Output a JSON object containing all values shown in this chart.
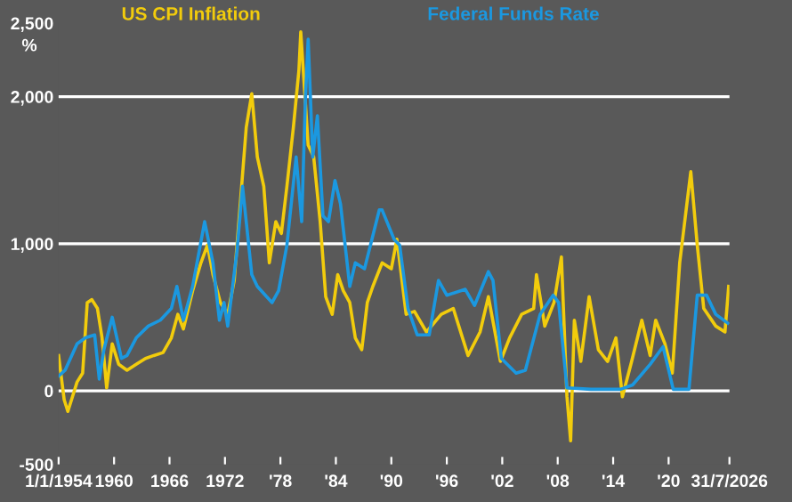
{
  "chart_data": {
    "type": "line",
    "ylabel": "%",
    "xlim": [
      1954.0,
      2026.58
    ],
    "ylim": [
      -500,
      2500
    ],
    "xticks": [
      {
        "value": 1954.0,
        "label": "1/1/1954"
      },
      1960,
      1966,
      1972,
      {
        "value": 1978,
        "label": "'78"
      },
      {
        "value": 1984,
        "label": "'84"
      },
      {
        "value": 1990,
        "label": "'90"
      },
      {
        "value": 1996,
        "label": "'96"
      },
      {
        "value": 2002,
        "label": "'02"
      },
      {
        "value": 2008,
        "label": "'08"
      },
      {
        "value": 2014,
        "label": "'14"
      },
      {
        "value": 2020,
        "label": "'20"
      },
      {
        "value": 2026.58,
        "label": "31/7/2026"
      }
    ],
    "yticks": [
      {
        "value": -500,
        "label": "-500"
      },
      0,
      {
        "value": 1000,
        "label": "1,000"
      },
      {
        "value": 2000,
        "label": "2,000"
      },
      {
        "value": 2500,
        "label": "2,500"
      }
    ],
    "grid": "y",
    "legend": "top",
    "series": [
      {
        "name": "US CPI Inflation",
        "color": "#f2cc0c",
        "x": [
          1954.0,
          1954.6,
          1955.0,
          1955.5,
          1956.0,
          1956.6,
          1957.1,
          1957.6,
          1958.2,
          1958.7,
          1959.2,
          1959.8,
          1960.5,
          1961.4,
          1962.4,
          1963.4,
          1964.3,
          1965.3,
          1966.2,
          1966.9,
          1967.5,
          1968.5,
          1969.4,
          1970.1,
          1970.7,
          1971.5,
          1972.3,
          1973.0,
          1973.6,
          1974.3,
          1974.9,
          1975.5,
          1976.2,
          1976.8,
          1977.5,
          1978.1,
          1978.7,
          1979.4,
          1980.0,
          1980.2,
          1981.0,
          1981.6,
          1982.3,
          1982.9,
          1983.6,
          1984.2,
          1984.8,
          1985.5,
          1986.1,
          1986.8,
          1987.4,
          1988.0,
          1989.0,
          1990.0,
          1990.6,
          1991.6,
          1992.5,
          1993.8,
          1995.4,
          1996.7,
          1998.3,
          1999.6,
          2000.5,
          2001.8,
          2002.8,
          2004.1,
          2005.4,
          2005.7,
          2006.6,
          2007.6,
          2008.4,
          2009.0,
          2009.4,
          2009.8,
          2010.5,
          2011.4,
          2012.4,
          2013.4,
          2014.3,
          2015.0,
          2016.0,
          2017.1,
          2018.0,
          2018.6,
          2019.6,
          2020.4,
          2021.2,
          2022.4,
          2023.1,
          2023.8,
          2025.1,
          2026.1,
          2026.5
        ],
        "values": [
          240,
          -60,
          -140,
          -40,
          60,
          120,
          600,
          620,
          560,
          360,
          20,
          320,
          180,
          140,
          180,
          220,
          240,
          260,
          360,
          520,
          420,
          680,
          870,
          990,
          790,
          600,
          520,
          750,
          1230,
          1790,
          2020,
          1590,
          1390,
          870,
          1150,
          1070,
          1390,
          1790,
          2180,
          2440,
          1670,
          1590,
          1150,
          640,
          520,
          790,
          680,
          600,
          360,
          280,
          600,
          710,
          870,
          830,
          1030,
          520,
          540,
          400,
          520,
          560,
          240,
          400,
          640,
          200,
          360,
          520,
          560,
          790,
          440,
          600,
          910,
          -40,
          -340,
          480,
          200,
          640,
          280,
          200,
          360,
          -40,
          200,
          480,
          240,
          480,
          320,
          120,
          870,
          1490,
          990,
          560,
          440,
          400,
          710
        ]
      },
      {
        "name": "Federal Funds Rate",
        "color": "#1b98e0",
        "x": [
          1954.0,
          1954.7,
          1956.0,
          1956.9,
          1957.9,
          1958.4,
          1958.9,
          1959.8,
          1960.8,
          1961.4,
          1962.4,
          1963.7,
          1965.0,
          1966.2,
          1966.8,
          1967.5,
          1968.5,
          1969.8,
          1970.7,
          1971.4,
          1971.9,
          1972.3,
          1973.3,
          1973.9,
          1974.9,
          1975.5,
          1976.5,
          1977.1,
          1977.8,
          1978.7,
          1979.7,
          1980.3,
          1980.7,
          1981.0,
          1981.5,
          1982.0,
          1982.6,
          1983.2,
          1983.9,
          1984.5,
          1985.5,
          1986.1,
          1987.1,
          1988.7,
          1989.0,
          1990.3,
          1990.9,
          1991.8,
          1992.8,
          1994.1,
          1995.1,
          1996.0,
          1998.0,
          1999.0,
          2000.5,
          2001.0,
          2001.9,
          2003.5,
          2004.5,
          2006.1,
          2007.5,
          2008.1,
          2009.0,
          2011.6,
          2014.8,
          2016.1,
          2018.0,
          2019.4,
          2020.5,
          2022.2,
          2023.1,
          2024.1,
          2025.1,
          2026.4
        ],
        "values": [
          100,
          140,
          320,
          360,
          380,
          80,
          280,
          500,
          220,
          240,
          360,
          440,
          480,
          560,
          710,
          480,
          710,
          1150,
          870,
          480,
          600,
          440,
          950,
          1390,
          790,
          710,
          640,
          600,
          680,
          990,
          1590,
          1150,
          1980,
          2390,
          1590,
          1870,
          1190,
          1150,
          1430,
          1270,
          710,
          870,
          830,
          1230,
          1230,
          1030,
          990,
          560,
          380,
          380,
          750,
          650,
          690,
          580,
          810,
          750,
          220,
          120,
          140,
          520,
          650,
          600,
          20,
          10,
          10,
          40,
          180,
          300,
          10,
          10,
          650,
          650,
          520,
          460
        ]
      }
    ]
  }
}
